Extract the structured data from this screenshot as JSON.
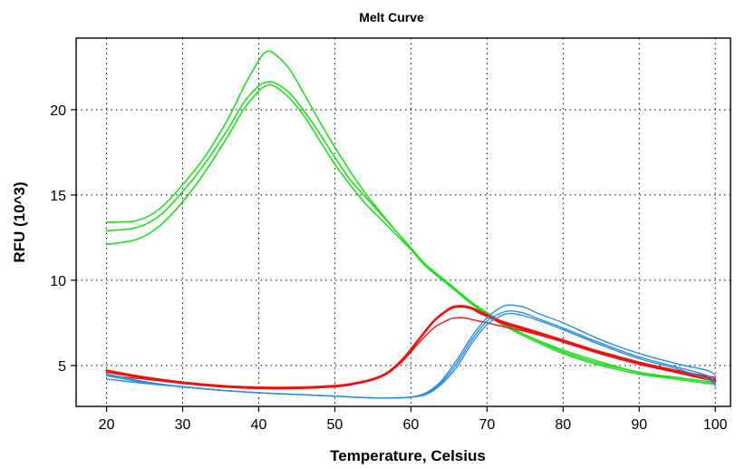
{
  "chart_data": {
    "type": "line",
    "title": "Melt Curve",
    "xlabel": "Temperature, Celsius",
    "ylabel": "RFU (10^3)",
    "xlim": [
      16,
      102
    ],
    "ylim": [
      2.6,
      24.2
    ],
    "xticks": [
      20,
      30,
      40,
      50,
      60,
      70,
      80,
      90,
      100
    ],
    "yticks": [
      5,
      10,
      15,
      20
    ],
    "grid": true,
    "colors": {
      "green": "#22dd22",
      "red": "#ee1111",
      "blue": "#2a8ee0"
    },
    "series": [
      {
        "color": "green",
        "width": 1.6,
        "x": [
          20,
          24,
          27,
          30,
          33,
          36,
          38,
          40,
          41,
          42,
          44,
          46,
          48,
          50,
          52,
          54,
          56,
          58,
          60,
          62,
          65,
          68,
          70,
          72,
          75,
          80,
          85,
          90,
          95,
          100
        ],
        "values": [
          13.4,
          13.5,
          14.2,
          15.6,
          17.3,
          19.5,
          21.3,
          22.9,
          23.4,
          23.3,
          22.4,
          20.9,
          19.3,
          17.8,
          16.4,
          15.1,
          14.0,
          12.9,
          11.9,
          10.9,
          9.8,
          8.7,
          8.1,
          7.5,
          6.8,
          5.9,
          5.2,
          4.6,
          4.3,
          4.0
        ]
      },
      {
        "color": "green",
        "width": 1.6,
        "x": [
          20,
          24,
          27,
          30,
          33,
          36,
          38,
          40,
          41,
          42,
          44,
          46,
          48,
          50,
          52,
          54,
          56,
          58,
          60,
          62,
          65,
          68,
          70,
          72,
          75,
          80,
          85,
          90,
          95,
          100
        ],
        "values": [
          12.9,
          13.1,
          13.8,
          15.2,
          16.9,
          18.9,
          20.4,
          21.4,
          21.6,
          21.6,
          21.0,
          19.9,
          18.6,
          17.2,
          15.9,
          14.9,
          13.9,
          12.9,
          11.9,
          10.9,
          9.8,
          8.7,
          8.1,
          7.5,
          6.8,
          5.8,
          5.1,
          4.6,
          4.2,
          3.9
        ]
      },
      {
        "color": "green",
        "width": 1.6,
        "x": [
          20,
          24,
          27,
          30,
          33,
          36,
          38,
          40,
          41,
          42,
          44,
          46,
          48,
          50,
          52,
          54,
          56,
          58,
          60,
          62,
          65,
          68,
          70,
          72,
          75,
          80,
          85,
          90,
          95,
          100
        ],
        "values": [
          12.1,
          12.4,
          13.2,
          14.6,
          16.4,
          18.5,
          20.0,
          21.1,
          21.4,
          21.4,
          20.7,
          19.6,
          18.2,
          16.8,
          15.6,
          14.5,
          13.6,
          12.7,
          11.8,
          10.8,
          9.7,
          8.6,
          8.0,
          7.4,
          6.7,
          5.7,
          5.0,
          4.5,
          4.2,
          3.9
        ]
      },
      {
        "color": "red",
        "width": 2.6,
        "x": [
          20,
          25,
          30,
          35,
          40,
          45,
          50,
          52,
          55,
          57,
          59,
          61,
          63,
          65,
          66,
          67,
          68,
          69,
          70,
          72,
          75,
          80,
          85,
          90,
          95,
          100
        ],
        "values": [
          4.7,
          4.3,
          4.0,
          3.8,
          3.7,
          3.7,
          3.8,
          3.9,
          4.2,
          4.6,
          5.4,
          6.5,
          7.6,
          8.3,
          8.45,
          8.45,
          8.35,
          8.1,
          7.9,
          7.5,
          7.1,
          6.4,
          5.7,
          5.1,
          4.6,
          4.1
        ]
      },
      {
        "color": "red",
        "width": 1.4,
        "x": [
          20,
          25,
          30,
          35,
          40,
          45,
          50,
          52,
          55,
          57,
          59,
          61,
          63,
          65,
          66,
          67,
          68,
          69,
          70,
          72,
          75,
          80,
          85,
          90,
          95,
          100
        ],
        "values": [
          4.6,
          4.25,
          3.95,
          3.75,
          3.65,
          3.65,
          3.75,
          3.85,
          4.15,
          4.55,
          5.3,
          6.3,
          7.2,
          7.7,
          7.8,
          7.8,
          7.7,
          7.6,
          7.5,
          7.3,
          7.0,
          6.4,
          5.8,
          5.2,
          4.7,
          4.3
        ]
      },
      {
        "color": "red",
        "width": 1.4,
        "x": [
          20,
          25,
          30,
          35,
          40,
          45,
          50,
          52,
          55,
          57,
          59,
          61,
          63,
          65,
          66,
          67,
          68,
          69,
          70,
          72,
          75,
          80,
          85,
          90,
          95,
          100
        ],
        "values": [
          4.4,
          4.2,
          3.95,
          3.75,
          3.65,
          3.65,
          3.75,
          3.85,
          4.2,
          4.6,
          5.4,
          6.5,
          7.6,
          8.35,
          8.5,
          8.5,
          8.4,
          8.2,
          8.0,
          7.6,
          7.2,
          6.5,
          5.8,
          5.2,
          4.7,
          4.2
        ]
      },
      {
        "color": "blue",
        "width": 1.4,
        "x": [
          20,
          25,
          30,
          35,
          40,
          45,
          50,
          55,
          58,
          60,
          62,
          64,
          66,
          68,
          70,
          72,
          73,
          74,
          75,
          77,
          80,
          85,
          90,
          95,
          99,
          100
        ],
        "values": [
          4.2,
          3.95,
          3.75,
          3.55,
          3.4,
          3.3,
          3.2,
          3.1,
          3.1,
          3.15,
          3.4,
          4.1,
          5.3,
          6.7,
          7.8,
          8.45,
          8.55,
          8.5,
          8.4,
          8.0,
          7.5,
          6.5,
          5.7,
          5.1,
          4.7,
          4.4
        ]
      },
      {
        "color": "blue",
        "width": 1.4,
        "x": [
          20,
          25,
          30,
          35,
          40,
          45,
          50,
          55,
          58,
          60,
          62,
          64,
          66,
          68,
          70,
          72,
          73,
          74,
          75,
          77,
          80,
          85,
          90,
          95,
          99,
          100
        ],
        "values": [
          4.4,
          4.0,
          3.75,
          3.55,
          3.4,
          3.3,
          3.2,
          3.1,
          3.1,
          3.15,
          3.35,
          4.0,
          5.1,
          6.5,
          7.6,
          8.1,
          8.2,
          8.15,
          8.05,
          7.7,
          7.2,
          6.3,
          5.5,
          4.9,
          4.4,
          3.9
        ]
      },
      {
        "color": "blue",
        "width": 1.4,
        "x": [
          20,
          25,
          30,
          35,
          40,
          45,
          50,
          55,
          58,
          60,
          62,
          64,
          66,
          68,
          70,
          72,
          73,
          74,
          75,
          77,
          80,
          85,
          90,
          95,
          99,
          100
        ],
        "values": [
          4.5,
          4.05,
          3.75,
          3.55,
          3.4,
          3.3,
          3.2,
          3.1,
          3.1,
          3.15,
          3.3,
          3.9,
          4.9,
          6.3,
          7.4,
          7.95,
          8.05,
          8.0,
          7.9,
          7.6,
          7.1,
          6.2,
          5.4,
          4.8,
          4.2,
          3.8
        ]
      }
    ]
  }
}
